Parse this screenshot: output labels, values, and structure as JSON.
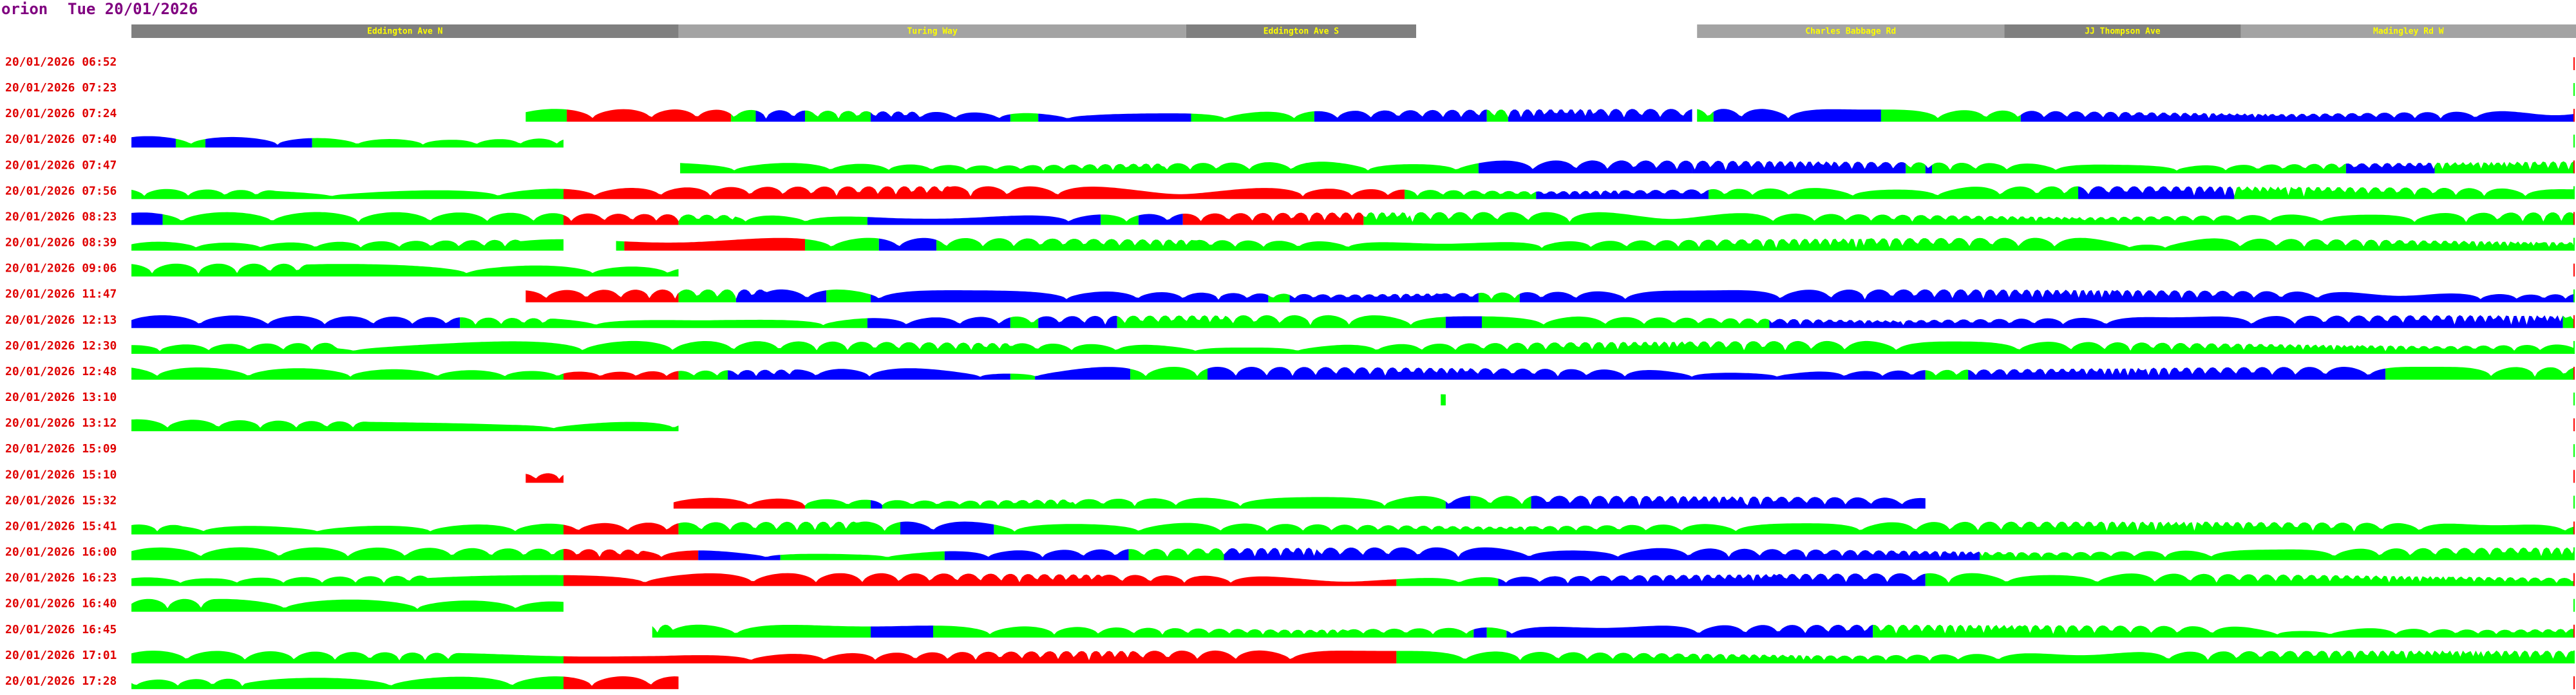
{
  "header": {
    "app": "orion",
    "date": "Tue 20/01/2026"
  },
  "roads": [
    "Eddington Ave N",
    "Turing Way",
    "Eddington Ave S",
    "Charles Babbage Rd",
    "JJ Thompson Ave",
    "Madingley Rd W"
  ],
  "rows": [
    "20/01/2026 06:52",
    "20/01/2026 07:23",
    "20/01/2026 07:24",
    "20/01/2026 07:40",
    "20/01/2026 07:47",
    "20/01/2026 07:56",
    "20/01/2026 08:23",
    "20/01/2026 08:39",
    "20/01/2026 09:06",
    "20/01/2026 11:47",
    "20/01/2026 12:13",
    "20/01/2026 12:30",
    "20/01/2026 12:48",
    "20/01/2026 13:10",
    "20/01/2026 13:12",
    "20/01/2026 15:09",
    "20/01/2026 15:10",
    "20/01/2026 15:32",
    "20/01/2026 15:41",
    "20/01/2026 16:00",
    "20/01/2026 16:23",
    "20/01/2026 16:40",
    "20/01/2026 16:45",
    "20/01/2026 17:01",
    "20/01/2026 17:28"
  ]
}
